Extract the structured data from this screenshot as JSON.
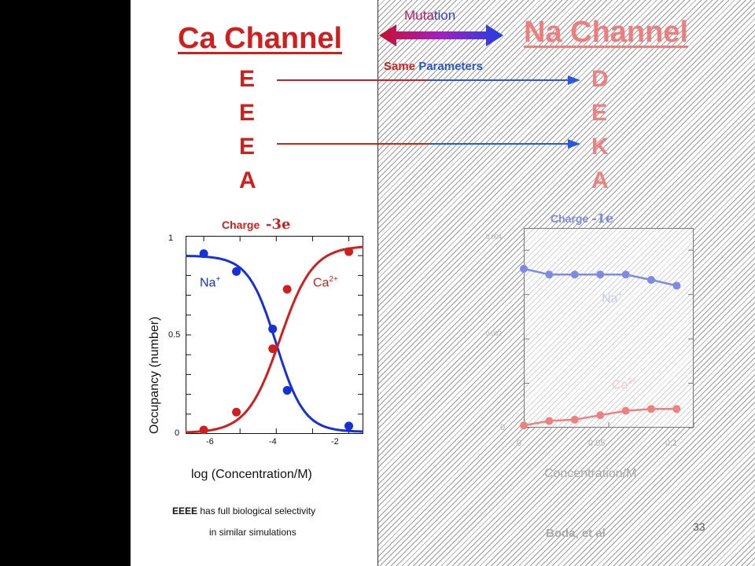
{
  "ca_channel": {
    "title": "Ca Channel",
    "residues": [
      "E",
      "E",
      "E",
      "A"
    ]
  },
  "na_channel": {
    "title": "Na Channel",
    "residues": [
      "D",
      "E",
      "K",
      "A"
    ]
  },
  "mutation_label_a": "Muta",
  "mutation_label_b": "tion",
  "same_params_a": "Same",
  "same_params_b": "Parameters",
  "colors": {
    "red": "#d31e1e",
    "pink": "#ef8080",
    "blue": "#1730d8",
    "light_blue": "#7d8ae6"
  },
  "left_chart": {
    "charge_label": "Charge",
    "charge_value": "-3e",
    "ylabel": "Occupancy (number)",
    "xlabel": "log (Concentration/M)",
    "xticks": [
      "-6",
      "-4",
      "-2"
    ],
    "yticks": [
      "0",
      "0.5",
      "1"
    ],
    "na_label": "Na",
    "na_sup": "+",
    "ca_label": "Ca",
    "ca_sup": "2+"
  },
  "right_chart": {
    "charge_label": "Charge",
    "charge_value": "-1e",
    "xlabel": "Concentration/M",
    "xticks": [
      "0",
      "0.05",
      "0.1"
    ],
    "yticks": [
      "0",
      "0.002",
      "0.004"
    ],
    "na_label": "Na",
    "na_sup": "+",
    "ca_label": "Ca",
    "ca_sup": "2+"
  },
  "note_bold": "EEEE",
  "note_line1": "has full biological selectivity",
  "note_line2": "in similar simulations",
  "citation": "Boda, et al",
  "page_number": "33",
  "chart_data": [
    {
      "type": "scatter",
      "title": "Charge -3e",
      "xlabel": "log (Concentration/M)",
      "ylabel": "Occupancy (number)",
      "xlim": [
        -6.5,
        -1.6
      ],
      "ylim": [
        0,
        1
      ],
      "series": [
        {
          "name": "Na+",
          "x": [
            -6.0,
            -5.1,
            -4.1,
            -3.7,
            -2.0
          ],
          "y": [
            0.91,
            0.82,
            0.53,
            0.22,
            0.04
          ]
        },
        {
          "name": "Ca2+",
          "x": [
            -6.0,
            -5.1,
            -4.1,
            -3.7,
            -2.0
          ],
          "y": [
            0.02,
            0.11,
            0.43,
            0.73,
            0.92
          ]
        }
      ]
    },
    {
      "type": "scatter",
      "title": "Charge -1e",
      "xlabel": "Concentration/M",
      "xlim": [
        0,
        0.1
      ],
      "ylim": [
        0,
        0.0045
      ],
      "series": [
        {
          "name": "Na+",
          "x": [
            0.0,
            0.015,
            0.03,
            0.045,
            0.06,
            0.075,
            0.09
          ],
          "y": [
            0.00358,
            0.00345,
            0.00345,
            0.00345,
            0.00345,
            0.00333,
            0.0032
          ]
        },
        {
          "name": "Ca2+",
          "x": [
            0.0,
            0.015,
            0.03,
            0.045,
            0.06,
            0.075,
            0.09
          ],
          "y": [
            5e-05,
            0.00015,
            0.00018,
            0.00028,
            0.00038,
            0.00042,
            0.00042
          ]
        }
      ]
    }
  ]
}
